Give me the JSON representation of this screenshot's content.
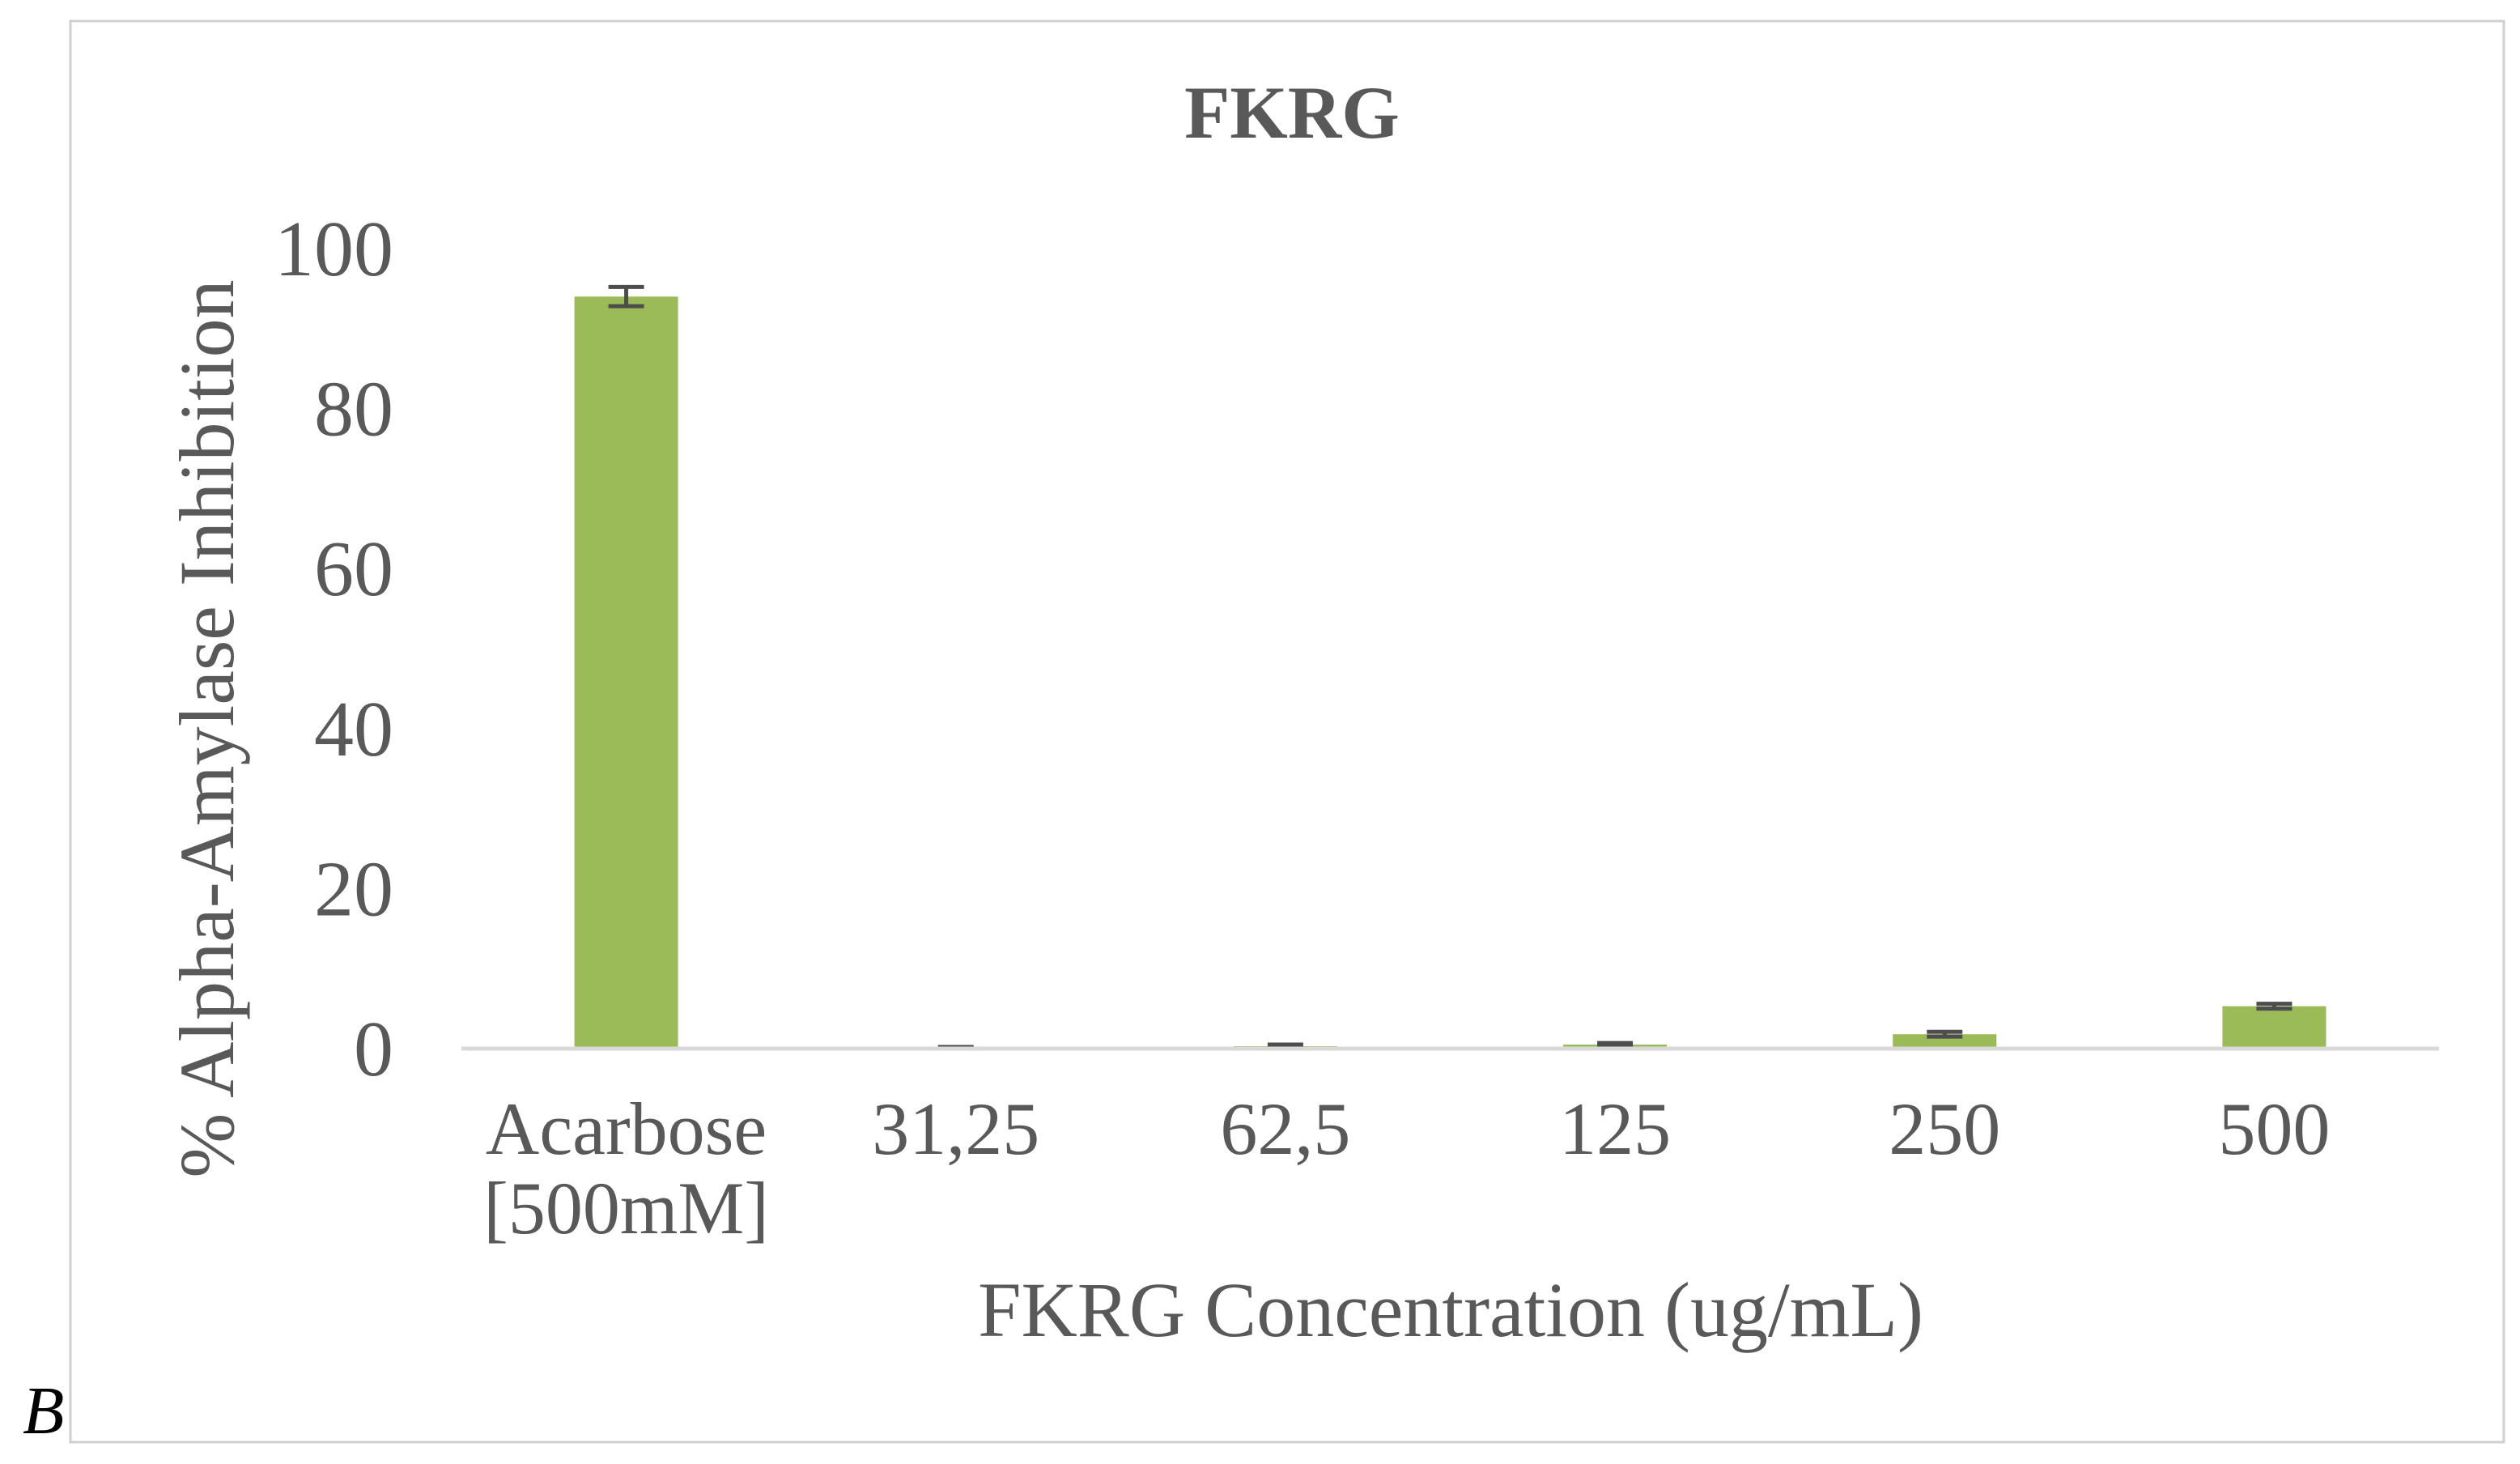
{
  "panel_label": "B",
  "chart_data": {
    "type": "bar",
    "title": "FKRG",
    "xlabel": "FKRG Concentration (ug/mL)",
    "ylabel": "% Alpha-Amylase Inhibition",
    "categories": [
      [
        "Acarbose",
        "[500mM]"
      ],
      [
        "31,25"
      ],
      [
        "62,5"
      ],
      [
        "125"
      ],
      [
        "250"
      ],
      [
        "500"
      ]
    ],
    "values": [
      94,
      0.1,
      0.3,
      0.5,
      1.8,
      5.3
    ],
    "errors": [
      1.2,
      0.1,
      0.2,
      0.2,
      0.3,
      0.3
    ],
    "ylim": [
      0,
      100
    ],
    "yticks": [
      "0",
      "20",
      "40",
      "60",
      "80",
      "100"
    ],
    "grid": false,
    "legend": "none",
    "bar_color": "#9bbb59",
    "error_color": "#4d4d4d",
    "text_color": "#595959",
    "axis_color": "#d9d9d9"
  }
}
